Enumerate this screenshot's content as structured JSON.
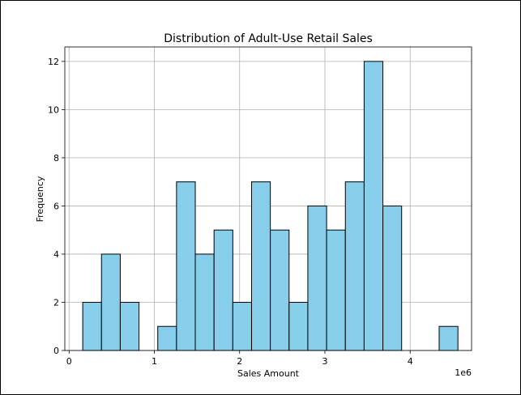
{
  "chart_data": {
    "type": "bar",
    "title": "Distribution of Adult-Use Retail Sales",
    "xlabel": "Sales Amount",
    "ylabel": "Frequency",
    "x_offset_label": "1e6",
    "xlim": [
      -0.05,
      4.72
    ],
    "ylim": [
      0,
      12.6
    ],
    "x_ticks": [
      0,
      1,
      2,
      3,
      4
    ],
    "y_ticks": [
      0,
      2,
      4,
      6,
      8,
      10,
      12
    ],
    "grid": true,
    "bin_edges": [
      0.16,
      0.38,
      0.6,
      0.82,
      1.04,
      1.26,
      1.48,
      1.7,
      1.92,
      2.14,
      2.36,
      2.58,
      2.8,
      3.02,
      3.24,
      3.46,
      3.68,
      3.9,
      4.12,
      4.34,
      4.56
    ],
    "values": [
      2,
      4,
      2,
      0,
      1,
      7,
      4,
      5,
      2,
      7,
      5,
      2,
      6,
      5,
      7,
      12,
      6,
      0,
      0,
      1
    ],
    "bar_color": "#87ceeb",
    "edge_color": "#000000"
  }
}
